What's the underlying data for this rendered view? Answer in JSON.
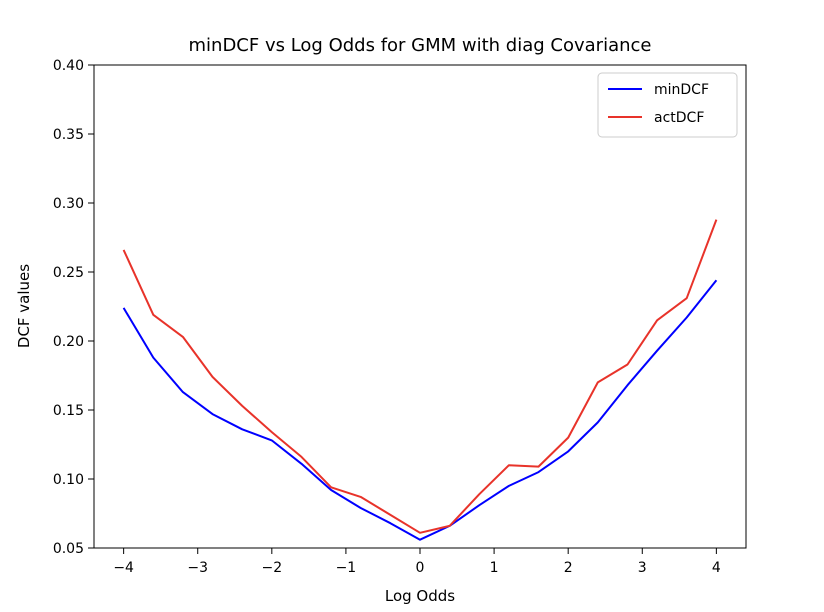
{
  "chart_data": {
    "type": "line",
    "title": "minDCF vs Log Odds for GMM with diag Covariance",
    "xlabel": "Log Odds",
    "ylabel": "DCF values",
    "xlim": [
      -4.4,
      4.4
    ],
    "ylim": [
      0.05,
      0.4
    ],
    "xticks": [
      -4,
      -3,
      -2,
      -1,
      0,
      1,
      2,
      3,
      4
    ],
    "xtick_labels": [
      "−4",
      "−3",
      "−2",
      "−1",
      "0",
      "1",
      "2",
      "3",
      "4"
    ],
    "yticks": [
      0.05,
      0.1,
      0.15,
      0.2,
      0.25,
      0.3,
      0.35,
      0.4
    ],
    "ytick_labels": [
      "0.05",
      "0.10",
      "0.15",
      "0.20",
      "0.25",
      "0.30",
      "0.35",
      "0.40"
    ],
    "grid": false,
    "legend_position": "top-right",
    "x": [
      -4.0,
      -3.6,
      -3.2,
      -2.8,
      -2.4,
      -2.0,
      -1.6,
      -1.2,
      -0.8,
      -0.4,
      0.0,
      0.4,
      0.8,
      1.2,
      1.6,
      2.0,
      2.4,
      2.8,
      3.2,
      3.6,
      4.0
    ],
    "series": [
      {
        "name": "minDCF",
        "color": "#0000ff",
        "values": [
          0.224,
          0.188,
          0.163,
          0.147,
          0.136,
          0.128,
          0.111,
          0.092,
          0.079,
          0.068,
          0.056,
          0.066,
          0.081,
          0.095,
          0.105,
          0.12,
          0.141,
          0.168,
          0.193,
          0.217,
          0.244
        ]
      },
      {
        "name": "actDCF",
        "color": "#e8332a",
        "values": [
          0.266,
          0.219,
          0.203,
          0.174,
          0.153,
          0.134,
          0.116,
          0.094,
          0.087,
          0.074,
          0.061,
          0.066,
          0.089,
          0.11,
          0.109,
          0.13,
          0.17,
          0.183,
          0.215,
          0.231,
          0.288
        ]
      }
    ]
  }
}
